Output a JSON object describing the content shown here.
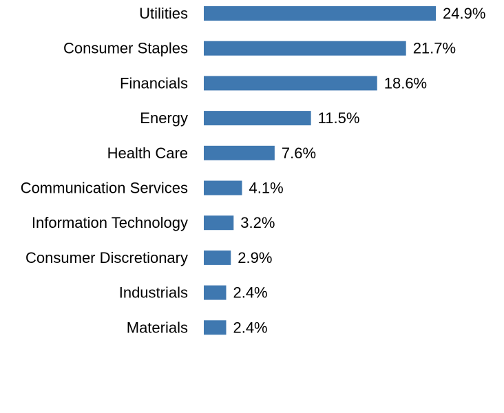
{
  "chart_data": {
    "type": "bar",
    "orientation": "horizontal",
    "title": "",
    "xlabel": "",
    "ylabel": "",
    "categories": [
      "Utilities",
      "Consumer Staples",
      "Financials",
      "Energy",
      "Health Care",
      "Communication Services",
      "Information Technology",
      "Consumer Discretionary",
      "Industrials",
      "Materials"
    ],
    "values": [
      24.9,
      21.7,
      18.6,
      11.5,
      7.6,
      4.1,
      3.2,
      2.9,
      2.4,
      2.4
    ],
    "value_labels": [
      "24.9%",
      "21.7%",
      "18.6%",
      "11.5%",
      "7.6%",
      "4.1%",
      "3.2%",
      "2.9%",
      "2.4%",
      "2.4%"
    ],
    "xlim": [
      0,
      24.9
    ],
    "grid": false,
    "legend": "none",
    "bar_color": "#3F78B0"
  }
}
